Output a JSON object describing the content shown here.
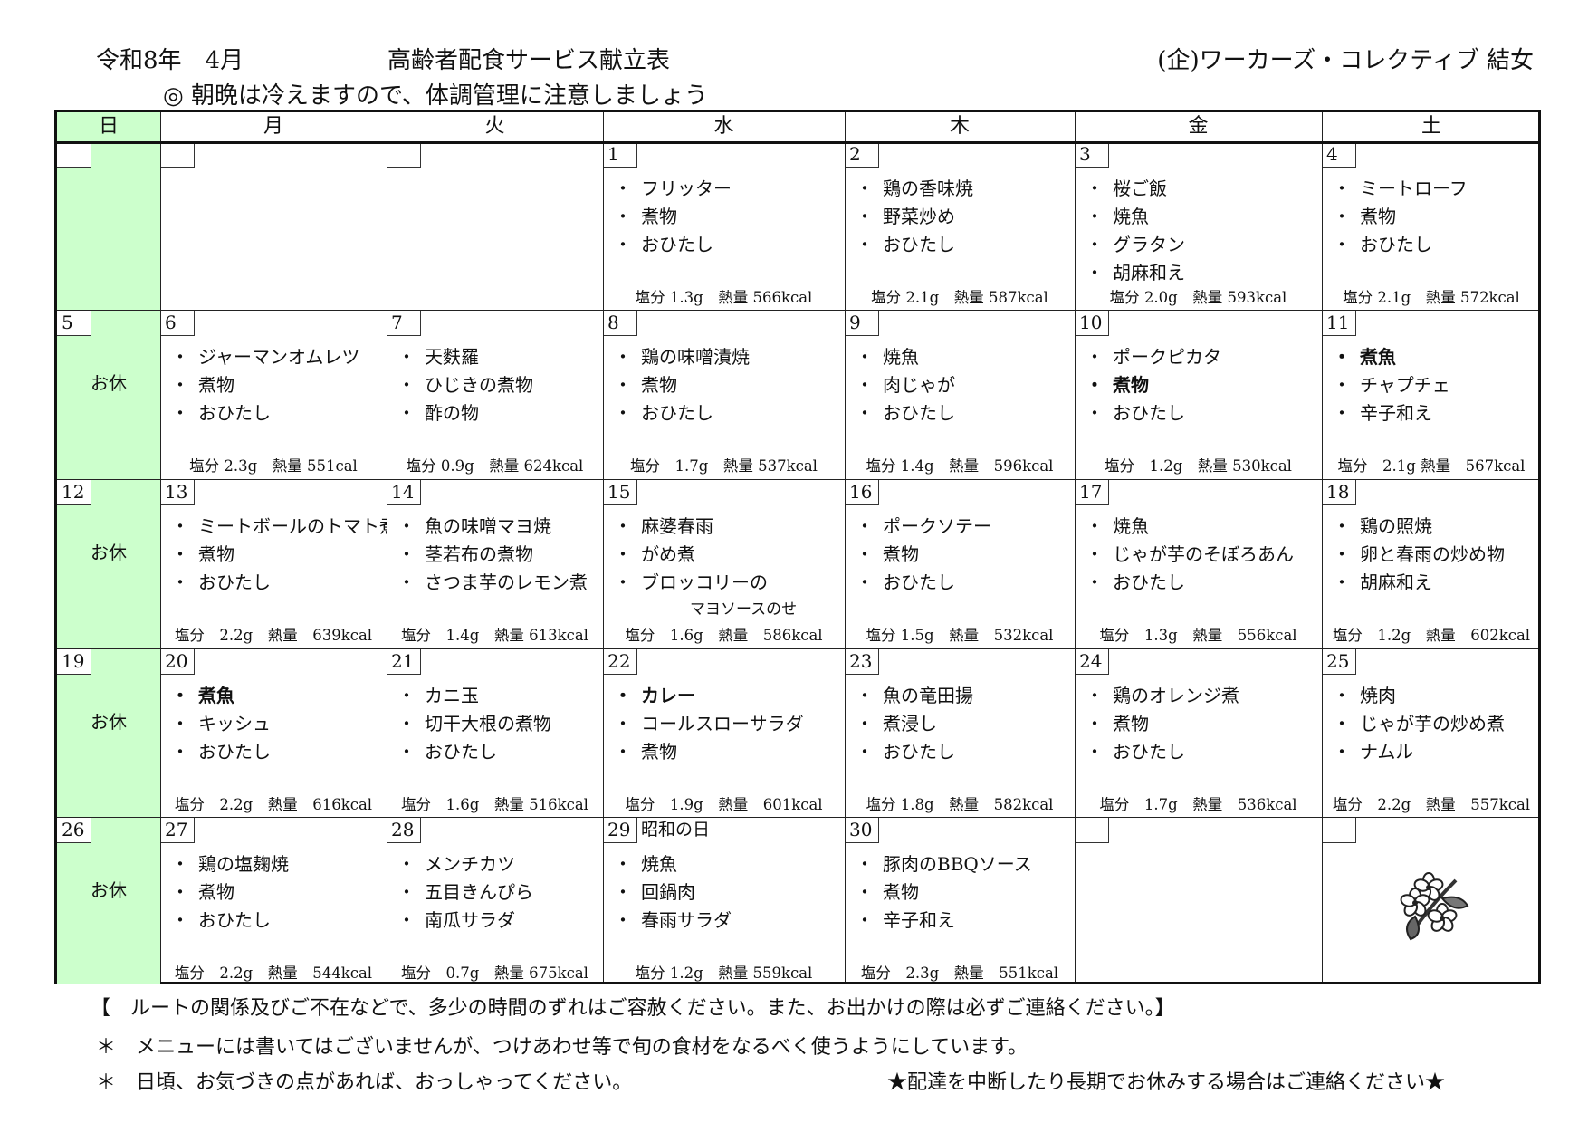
{
  "header": {
    "period": "令和8年　4月",
    "title": "高齢者配食サービス献立表",
    "org": "(企)ワーカーズ・コレクティブ 結女",
    "notice": "◎ 朝晩は冷えますので、体調管理に注意しましょう"
  },
  "colors": {
    "sunday_bg": "#ccffcc",
    "border": "#111111"
  },
  "weekdays": [
    "日",
    "月",
    "火",
    "水",
    "木",
    "金",
    "土"
  ],
  "off_label": "お休",
  "weeks": [
    [
      {
        "day": ""
      },
      {
        "day": ""
      },
      {
        "day": ""
      },
      {
        "day": "1",
        "items": [
          {
            "text": "フリッター"
          },
          {
            "text": "煮物"
          },
          {
            "text": "おひたし"
          }
        ],
        "nutrition": "塩分 1.3g　熱量 566kcal"
      },
      {
        "day": "2",
        "items": [
          {
            "text": "鶏の香味焼"
          },
          {
            "text": "野菜炒め"
          },
          {
            "text": "おひたし"
          }
        ],
        "nutrition": "塩分 2.1g　熱量 587kcal"
      },
      {
        "day": "3",
        "items": [
          {
            "text": "桜ご飯"
          },
          {
            "text": "焼魚"
          },
          {
            "text": "グラタン"
          },
          {
            "text": "胡麻和え"
          }
        ],
        "nutrition": "塩分 2.0g　熱量 593kcal"
      },
      {
        "day": "4",
        "items": [
          {
            "text": "ミートローフ"
          },
          {
            "text": "煮物"
          },
          {
            "text": "おひたし"
          }
        ],
        "nutrition": "塩分 2.1g　熱量 572kcal"
      }
    ],
    [
      {
        "day": "5",
        "off": true
      },
      {
        "day": "6",
        "items": [
          {
            "text": "ジャーマンオムレツ"
          },
          {
            "text": "煮物"
          },
          {
            "text": "おひたし"
          }
        ],
        "nutrition": "塩分 2.3g　熱量 551cal"
      },
      {
        "day": "7",
        "items": [
          {
            "text": "天麩羅"
          },
          {
            "text": "ひじきの煮物"
          },
          {
            "text": "酢の物"
          }
        ],
        "nutrition": "塩分 0.9g　熱量 624kcal"
      },
      {
        "day": "8",
        "items": [
          {
            "text": "鶏の味噌漬焼"
          },
          {
            "text": "煮物"
          },
          {
            "text": "おひたし"
          }
        ],
        "nutrition": "塩分　1.7g　熱量 537kcal"
      },
      {
        "day": "9",
        "items": [
          {
            "text": "焼魚"
          },
          {
            "text": "肉じゃが"
          },
          {
            "text": "おひたし"
          }
        ],
        "nutrition": "塩分 1.4g　熱量　596kcal"
      },
      {
        "day": "10",
        "items": [
          {
            "text": "ポークピカタ"
          },
          {
            "text": "煮物",
            "bold": true
          },
          {
            "text": "おひたし"
          }
        ],
        "nutrition": "塩分　1.2g　熱量 530kcal"
      },
      {
        "day": "11",
        "items": [
          {
            "text": "煮魚",
            "bold": true
          },
          {
            "text": "チャプチェ"
          },
          {
            "text": "辛子和え"
          }
        ],
        "nutrition": "塩分　2.1g 熱量　567kcal"
      }
    ],
    [
      {
        "day": "12",
        "off": true
      },
      {
        "day": "13",
        "items": [
          {
            "text": "ミートボールのトマト煮"
          },
          {
            "text": "煮物"
          },
          {
            "text": "おひたし"
          }
        ],
        "nutrition": "塩分　2.2g　熱量　639kcal"
      },
      {
        "day": "14",
        "items": [
          {
            "text": "魚の味噌マヨ焼"
          },
          {
            "text": "茎若布の煮物"
          },
          {
            "text": "さつま芋のレモン煮"
          }
        ],
        "nutrition": "塩分　1.4g　熱量 613kcal"
      },
      {
        "day": "15",
        "items": [
          {
            "text": "麻婆春雨"
          },
          {
            "text": "がめ煮"
          },
          {
            "text": "ブロッコリーの"
          },
          {
            "text": "マヨソースのせ",
            "indent": true
          }
        ],
        "nutrition": "塩分　1.6g　熱量　586kcal"
      },
      {
        "day": "16",
        "items": [
          {
            "text": "ポークソテー"
          },
          {
            "text": "煮物"
          },
          {
            "text": "おひたし"
          }
        ],
        "nutrition": "塩分 1.5g　熱量　532kcal"
      },
      {
        "day": "17",
        "items": [
          {
            "text": "焼魚"
          },
          {
            "text": "じゃが芋のそぼろあん"
          },
          {
            "text": "おひたし"
          }
        ],
        "nutrition": "塩分　1.3g　熱量　556kcal"
      },
      {
        "day": "18",
        "items": [
          {
            "text": "鶏の照焼"
          },
          {
            "text": "卵と春雨の炒め物"
          },
          {
            "text": "胡麻和え"
          }
        ],
        "nutrition": "塩分　1.2g　熱量　602kcal"
      }
    ],
    [
      {
        "day": "19",
        "off": true
      },
      {
        "day": "20",
        "items": [
          {
            "text": "煮魚",
            "bold": true
          },
          {
            "text": "キッシュ"
          },
          {
            "text": "おひたし"
          }
        ],
        "nutrition": "塩分　2.2g　熱量　616kcal"
      },
      {
        "day": "21",
        "items": [
          {
            "text": "カニ玉"
          },
          {
            "text": "切干大根の煮物"
          },
          {
            "text": "おひたし"
          }
        ],
        "nutrition": "塩分　1.6g　熱量 516kcal"
      },
      {
        "day": "22",
        "items": [
          {
            "text": "カレー",
            "bold": true
          },
          {
            "text": "コールスローサラダ"
          },
          {
            "text": "煮物"
          }
        ],
        "nutrition": "塩分　1.9g　熱量　601kcal"
      },
      {
        "day": "23",
        "items": [
          {
            "text": "魚の竜田揚"
          },
          {
            "text": "煮浸し"
          },
          {
            "text": "おひたし"
          }
        ],
        "nutrition": "塩分 1.8g　熱量　582kcal"
      },
      {
        "day": "24",
        "items": [
          {
            "text": "鶏のオレンジ煮"
          },
          {
            "text": "煮物"
          },
          {
            "text": "おひたし"
          }
        ],
        "nutrition": "塩分　1.7g　熱量　536kcal"
      },
      {
        "day": "25",
        "items": [
          {
            "text": "焼肉"
          },
          {
            "text": "じゃが芋の炒め煮"
          },
          {
            "text": "ナムル"
          }
        ],
        "nutrition": "塩分　2.2g　熱量　557kcal"
      }
    ],
    [
      {
        "day": "26",
        "off": true
      },
      {
        "day": "27",
        "items": [
          {
            "text": "鶏の塩麹焼"
          },
          {
            "text": "煮物"
          },
          {
            "text": "おひたし"
          }
        ],
        "nutrition": "塩分　2.2g　熱量　544kcal"
      },
      {
        "day": "28",
        "items": [
          {
            "text": "メンチカツ"
          },
          {
            "text": "五目きんぴら"
          },
          {
            "text": "南瓜サラダ"
          }
        ],
        "nutrition": "塩分　0.7g　熱量 675kcal"
      },
      {
        "day": "29",
        "note": "昭和の日",
        "items": [
          {
            "text": "焼魚"
          },
          {
            "text": "回鍋肉"
          },
          {
            "text": "春雨サラダ"
          }
        ],
        "nutrition": "塩分 1.2g　熱量 559kcal"
      },
      {
        "day": "30",
        "items": [
          {
            "text": "豚肉のBBQソース"
          },
          {
            "text": "煮物"
          },
          {
            "text": "辛子和え"
          }
        ],
        "nutrition": "塩分　2.3g　熱量　551kcal"
      },
      {
        "day": ""
      },
      {
        "day": "",
        "icon": "cherry-blossom-icon"
      }
    ]
  ],
  "footer": {
    "line1": "【　ルートの関係及びご不在などで、多少の時間のずれはご容赦ください。また、お出かけの際は必ずご連絡ください。】",
    "line2": "＊　メニューには書いてはございませんが、つけあわせ等で旬の食材をなるべく使うようにしています。",
    "line3": "＊　日頃、お気づきの点があれば、おっしゃってください。",
    "line4": "★配達を中断したり長期でお休みする場合はご連絡ください★"
  }
}
